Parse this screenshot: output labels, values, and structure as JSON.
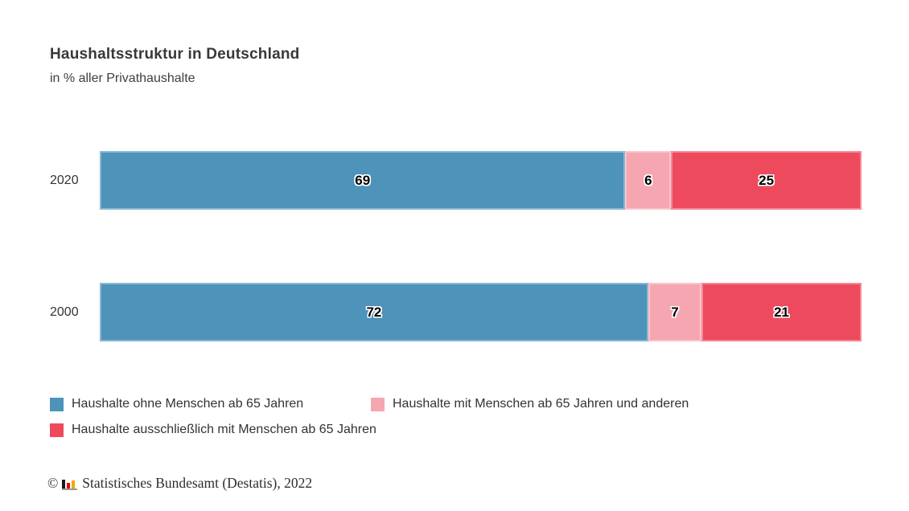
{
  "header": {
    "title": "Haushaltsstruktur in Deutschland",
    "subtitle": "in % aller Privathaushalte"
  },
  "chart_data": {
    "type": "bar",
    "orientation": "horizontal",
    "stacked": true,
    "title": "Haushaltsstruktur in Deutschland",
    "subtitle": "in % aller Privathaushalte",
    "unit": "%",
    "xlim": [
      0,
      100
    ],
    "grid": false,
    "legend_position": "bottom",
    "categories": [
      "2020",
      "2000"
    ],
    "series": [
      {
        "name": "Haushalte ohne Menschen ab 65 Jahren",
        "color": "#4d93ba",
        "values": [
          69,
          72
        ]
      },
      {
        "name": "Haushalte mit Menschen ab 65 Jahren und anderen",
        "color": "#f6a6b0",
        "values": [
          6,
          7
        ]
      },
      {
        "name": "Haushalte ausschließlich mit Menschen ab 65 Jahren",
        "color": "#ee4a5e",
        "values": [
          25,
          21
        ]
      }
    ],
    "source": "© Statistisches Bundesamt (Destatis), 2022"
  },
  "footer": {
    "copyright_symbol": "©",
    "source_text": "Statistisches Bundesamt (Destatis), 2022",
    "logo_colors": {
      "black": "#1a1a1a",
      "red": "#e30613",
      "gold": "#f0ab00",
      "base": "#9b9b9b"
    }
  }
}
